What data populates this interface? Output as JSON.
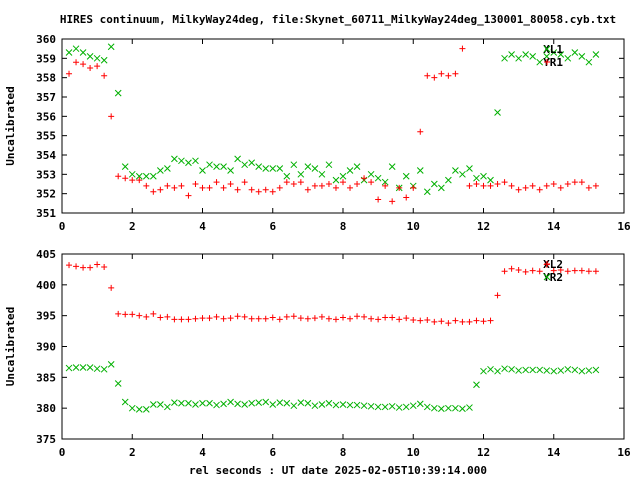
{
  "title": "HIRES continuum, MilkyWay24deg, file:Skynet_60711_MilkyWay24deg_130001_80058.cyb.txt",
  "xlabel": "rel seconds : UT date 2025-02-05T10:39:14.000",
  "colors": {
    "red": "#ff0000",
    "green": "#00b000",
    "frame": "#000000",
    "grid": "#a0a0a0"
  },
  "chart_data": [
    {
      "type": "scatter",
      "ylabel": "Uncalibrated",
      "xlim": [
        0,
        16
      ],
      "ylim": [
        351,
        360
      ],
      "xticks": [
        0,
        2,
        4,
        6,
        8,
        10,
        12,
        14,
        16
      ],
      "yticks": [
        351,
        352,
        353,
        354,
        355,
        356,
        357,
        358,
        359,
        360
      ],
      "legend_position": "top-right",
      "series": [
        {
          "name": "XL1",
          "color": "#00b000",
          "marker": "x",
          "x": [
            0.2,
            0.4,
            0.6,
            0.8,
            1.0,
            1.2,
            1.4,
            1.6,
            1.8,
            2.0,
            2.2,
            2.4,
            2.6,
            2.8,
            3.0,
            3.2,
            3.4,
            3.6,
            3.8,
            4.0,
            4.2,
            4.4,
            4.6,
            4.8,
            5.0,
            5.2,
            5.4,
            5.6,
            5.8,
            6.0,
            6.2,
            6.4,
            6.6,
            6.8,
            7.0,
            7.2,
            7.4,
            7.6,
            7.8,
            8.0,
            8.2,
            8.4,
            8.6,
            8.8,
            9.0,
            9.2,
            9.4,
            9.6,
            9.8,
            10.0,
            10.2,
            10.4,
            10.6,
            10.8,
            11.0,
            11.2,
            11.4,
            11.6,
            11.8,
            12.0,
            12.2,
            12.4,
            12.6,
            12.8,
            13.0,
            13.2,
            13.4,
            13.6,
            13.8,
            14.0,
            14.2,
            14.4,
            14.6,
            14.8,
            15.0,
            15.2
          ],
          "y": [
            359.3,
            359.5,
            359.3,
            359.1,
            359.0,
            358.9,
            359.6,
            357.2,
            353.4,
            353.0,
            352.9,
            352.9,
            352.9,
            353.2,
            353.3,
            353.8,
            353.7,
            353.6,
            353.7,
            353.2,
            353.5,
            353.4,
            353.4,
            353.2,
            353.8,
            353.5,
            353.6,
            353.4,
            353.3,
            353.3,
            353.3,
            352.9,
            353.5,
            353.0,
            353.4,
            353.3,
            353.0,
            353.5,
            352.7,
            352.9,
            353.2,
            353.4,
            352.7,
            353.0,
            352.8,
            352.6,
            353.4,
            352.3,
            352.9,
            352.4,
            353.2,
            352.1,
            352.5,
            352.3,
            352.7,
            353.2,
            353.0,
            353.3,
            352.8,
            352.9,
            352.7,
            356.2,
            359.0,
            359.2,
            359.0,
            359.2,
            359.1,
            358.8,
            359.1,
            359.3,
            359.2,
            359.0,
            359.3,
            359.1,
            358.8,
            359.2
          ]
        },
        {
          "name": "YR1",
          "color": "#ff0000",
          "marker": "+",
          "x": [
            0.2,
            0.4,
            0.6,
            0.8,
            1.0,
            1.2,
            1.4,
            1.6,
            1.8,
            2.0,
            2.2,
            2.4,
            2.6,
            2.8,
            3.0,
            3.2,
            3.4,
            3.6,
            3.8,
            4.0,
            4.2,
            4.4,
            4.6,
            4.8,
            5.0,
            5.2,
            5.4,
            5.6,
            5.8,
            6.0,
            6.2,
            6.4,
            6.6,
            6.8,
            7.0,
            7.2,
            7.4,
            7.6,
            7.8,
            8.0,
            8.2,
            8.4,
            8.6,
            8.8,
            9.0,
            9.2,
            9.4,
            9.6,
            9.8,
            10.0,
            10.2,
            10.4,
            10.6,
            10.8,
            11.0,
            11.2,
            11.4,
            11.6,
            11.8,
            12.0,
            12.2,
            12.4,
            12.6,
            12.8,
            13.0,
            13.2,
            13.4,
            13.6,
            13.8,
            14.0,
            14.2,
            14.4,
            14.6,
            14.8,
            15.0,
            15.2
          ],
          "y": [
            358.2,
            358.8,
            358.7,
            358.5,
            358.6,
            358.1,
            356.0,
            352.9,
            352.8,
            352.7,
            352.7,
            352.4,
            352.1,
            352.2,
            352.4,
            352.3,
            352.4,
            351.9,
            352.5,
            352.3,
            352.3,
            352.6,
            352.3,
            352.5,
            352.2,
            352.6,
            352.2,
            352.1,
            352.2,
            352.1,
            352.3,
            352.6,
            352.5,
            352.6,
            352.2,
            352.4,
            352.4,
            352.5,
            352.3,
            352.6,
            352.3,
            352.5,
            352.8,
            352.6,
            351.7,
            352.4,
            351.6,
            352.3,
            351.8,
            352.3,
            355.2,
            358.1,
            358.0,
            358.2,
            358.1,
            358.2,
            359.5,
            352.4,
            352.5,
            352.4,
            352.4,
            352.5,
            352.6,
            352.4,
            352.2,
            352.3,
            352.4,
            352.2,
            352.4,
            352.5,
            352.3,
            352.5,
            352.6,
            352.6,
            352.3,
            352.4
          ]
        }
      ]
    },
    {
      "type": "scatter",
      "ylabel": "Uncalibrated",
      "xlim": [
        0,
        16
      ],
      "ylim": [
        375,
        405
      ],
      "xticks": [
        0,
        2,
        4,
        6,
        8,
        10,
        12,
        14,
        16
      ],
      "yticks": [
        375,
        380,
        385,
        390,
        395,
        400,
        405
      ],
      "legend_position": "top-right",
      "series": [
        {
          "name": "XL2",
          "color": "#ff0000",
          "marker": "+",
          "x": [
            0.2,
            0.4,
            0.6,
            0.8,
            1.0,
            1.2,
            1.4,
            1.6,
            1.8,
            2.0,
            2.2,
            2.4,
            2.6,
            2.8,
            3.0,
            3.2,
            3.4,
            3.6,
            3.8,
            4.0,
            4.2,
            4.4,
            4.6,
            4.8,
            5.0,
            5.2,
            5.4,
            5.6,
            5.8,
            6.0,
            6.2,
            6.4,
            6.6,
            6.8,
            7.0,
            7.2,
            7.4,
            7.6,
            7.8,
            8.0,
            8.2,
            8.4,
            8.6,
            8.8,
            9.0,
            9.2,
            9.4,
            9.6,
            9.8,
            10.0,
            10.2,
            10.4,
            10.6,
            10.8,
            11.0,
            11.2,
            11.4,
            11.6,
            11.8,
            12.0,
            12.2,
            12.4,
            12.6,
            12.8,
            13.0,
            13.2,
            13.4,
            13.6,
            13.8,
            14.0,
            14.2,
            14.4,
            14.6,
            14.8,
            15.0,
            15.2
          ],
          "y": [
            403.2,
            403.0,
            402.8,
            402.8,
            403.3,
            402.9,
            399.5,
            395.3,
            395.2,
            395.2,
            395.0,
            394.8,
            395.3,
            394.7,
            394.8,
            394.4,
            394.4,
            394.4,
            394.5,
            394.6,
            394.6,
            394.8,
            394.5,
            394.6,
            394.9,
            394.8,
            394.5,
            394.5,
            394.5,
            394.7,
            394.4,
            394.8,
            394.9,
            394.6,
            394.5,
            394.6,
            394.8,
            394.5,
            394.4,
            394.7,
            394.5,
            394.9,
            394.8,
            394.5,
            394.4,
            394.7,
            394.7,
            394.4,
            394.6,
            394.3,
            394.2,
            394.3,
            394.0,
            394.1,
            393.8,
            394.2,
            394.0,
            394.0,
            394.2,
            394.1,
            394.2,
            398.3,
            402.2,
            402.6,
            402.4,
            402.1,
            402.3,
            402.2,
            403.3,
            402.3,
            402.4,
            402.2,
            402.3,
            402.3,
            402.2,
            402.2
          ]
        },
        {
          "name": "YR2",
          "color": "#00b000",
          "marker": "x",
          "x": [
            0.2,
            0.4,
            0.6,
            0.8,
            1.0,
            1.2,
            1.4,
            1.6,
            1.8,
            2.0,
            2.2,
            2.4,
            2.6,
            2.8,
            3.0,
            3.2,
            3.4,
            3.6,
            3.8,
            4.0,
            4.2,
            4.4,
            4.6,
            4.8,
            5.0,
            5.2,
            5.4,
            5.6,
            5.8,
            6.0,
            6.2,
            6.4,
            6.6,
            6.8,
            7.0,
            7.2,
            7.4,
            7.6,
            7.8,
            8.0,
            8.2,
            8.4,
            8.6,
            8.8,
            9.0,
            9.2,
            9.4,
            9.6,
            9.8,
            10.0,
            10.2,
            10.4,
            10.6,
            10.8,
            11.0,
            11.2,
            11.4,
            11.6,
            11.8,
            12.0,
            12.2,
            12.4,
            12.6,
            12.8,
            13.0,
            13.2,
            13.4,
            13.6,
            13.8,
            14.0,
            14.2,
            14.4,
            14.6,
            14.8,
            15.0,
            15.2
          ],
          "y": [
            386.5,
            386.6,
            386.6,
            386.6,
            386.4,
            386.3,
            387.1,
            384.0,
            381.0,
            380.0,
            379.8,
            379.8,
            380.6,
            380.6,
            380.2,
            380.9,
            380.8,
            380.8,
            380.6,
            380.8,
            380.8,
            380.5,
            380.7,
            381.0,
            380.7,
            380.6,
            380.8,
            380.9,
            381.0,
            380.6,
            380.9,
            380.8,
            380.4,
            380.9,
            380.8,
            380.4,
            380.6,
            380.8,
            380.5,
            380.6,
            380.5,
            380.5,
            380.4,
            380.3,
            380.2,
            380.2,
            380.3,
            380.1,
            380.2,
            380.4,
            380.7,
            380.2,
            380.0,
            379.9,
            380.0,
            380.0,
            379.9,
            380.1,
            383.8,
            386.0,
            386.3,
            386.0,
            386.4,
            386.3,
            386.1,
            386.2,
            386.2,
            386.2,
            386.1,
            386.0,
            386.1,
            386.3,
            386.2,
            386.0,
            386.1,
            386.2
          ]
        }
      ]
    }
  ]
}
